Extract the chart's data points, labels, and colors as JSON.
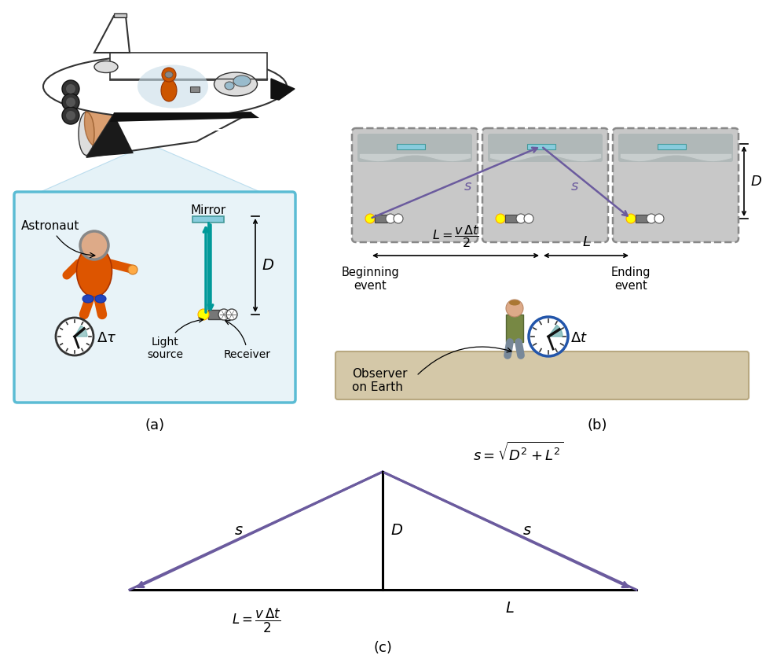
{
  "fig_width": 9.75,
  "fig_height": 8.33,
  "bg_color": "#ffffff",
  "purple_color": "#6B5B9E",
  "teal_color": "#007A7A",
  "black_color": "#000000",
  "panel_a_label": "(a)",
  "panel_b_label": "(b)",
  "panel_c_label": "(c)",
  "eq_text": "$s = \\sqrt{D^2 + L^2}$",
  "zoom_box_fill": "#e8f3f8",
  "zoom_box_edge": "#5bbcd4",
  "dashed_box_fill": "#c8c8c8",
  "dashed_box_edge": "#888888",
  "earth_ground_color": "#d4c8a8",
  "mirror_color": "#88ccdd",
  "teal_line": "#009999",
  "shuttle_fill": "#ffffff",
  "shuttle_edge": "#333333",
  "shuttle_dark": "#1a1a1a",
  "shuttle_gray": "#888888",
  "cone_fill": "#ddeef5"
}
